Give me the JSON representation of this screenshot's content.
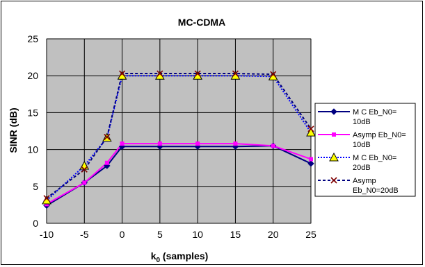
{
  "chart_data": {
    "type": "line",
    "title": "MC-CDMA",
    "xlabel_main": "k",
    "xlabel_sub": "0",
    "xlabel_rest": " (samples)",
    "ylabel": "SINR (dB)",
    "xlim": [
      -10,
      25
    ],
    "ylim": [
      0,
      25
    ],
    "xticks": [
      -10,
      -5,
      0,
      5,
      10,
      15,
      20,
      25
    ],
    "yticks": [
      0,
      5,
      10,
      15,
      20,
      25
    ],
    "grid": true,
    "plot_background": "#c0c0c0",
    "legend_position": "right",
    "series": [
      {
        "name": "M C Eb_N0= 10dB",
        "legend_lines": [
          "M C Eb_N0=",
          "10dB"
        ],
        "color": "#000080",
        "dash": "solid",
        "marker": "diamond",
        "x": [
          -10,
          -5,
          -2,
          0,
          5,
          10,
          15,
          20,
          25
        ],
        "y": [
          2.4,
          5.5,
          7.8,
          10.4,
          10.4,
          10.4,
          10.4,
          10.5,
          8.1
        ]
      },
      {
        "name": "Asymp Eb_N0= 10dB",
        "legend_lines": [
          "Asymp Eb_N0=",
          "10dB"
        ],
        "color": "#ff00ff",
        "dash": "solid",
        "marker": "square",
        "x": [
          -10,
          -5,
          -2,
          0,
          5,
          10,
          15,
          20,
          25
        ],
        "y": [
          2.6,
          5.5,
          8.2,
          10.8,
          10.8,
          10.8,
          10.8,
          10.5,
          8.7
        ]
      },
      {
        "name": "M C Eb_N0= 20dB",
        "legend_lines": [
          "M C Eb_N0=",
          "20dB"
        ],
        "color": "#0000ff",
        "dash": "dotted",
        "marker": "triangle",
        "x": [
          -10,
          -5,
          -2,
          0,
          5,
          10,
          15,
          20,
          25
        ],
        "y": [
          3.1,
          7.8,
          11.6,
          20.0,
          20.0,
          20.0,
          20.0,
          19.9,
          12.3
        ]
      },
      {
        "name": "Asymp Eb_N0=20dB",
        "legend_lines": [
          "Asymp",
          "Eb_N0=20dB"
        ],
        "color": "#000080",
        "dash": "dashed",
        "marker": "x",
        "x": [
          -10,
          -5,
          -2,
          0,
          5,
          10,
          15,
          20,
          25
        ],
        "y": [
          3.4,
          7.3,
          11.7,
          20.3,
          20.3,
          20.3,
          20.3,
          20.2,
          12.8
        ]
      }
    ]
  }
}
